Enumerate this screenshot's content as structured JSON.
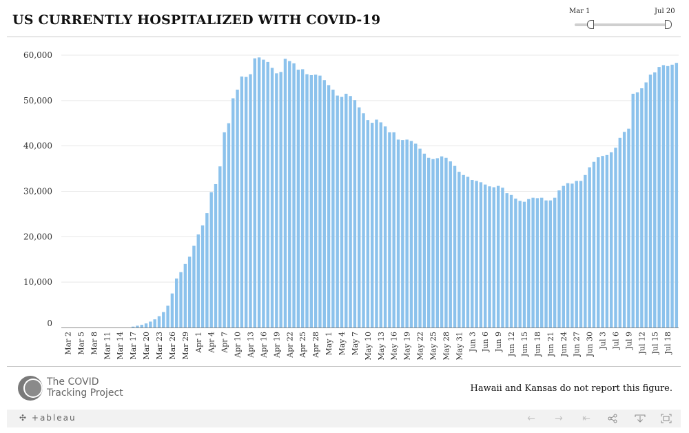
{
  "title": "US CURRENTLY HOSPITALIZED WITH COVID-19",
  "date_slider": {
    "start": "Mar 1",
    "end": "Jul 20"
  },
  "note": "Hawaii and Kansas do not report this figure.",
  "logo": {
    "line1": "The COVID",
    "line2": "Tracking Project"
  },
  "tableau_brand": "+ableau",
  "toolbar": [
    "undo-icon",
    "redo-icon",
    "revert-icon",
    "share-icon",
    "download-icon",
    "fullscreen-icon"
  ],
  "colors": {
    "bar": "#8cc2ec",
    "grid": "#e8e8e8",
    "axis": "#888888"
  },
  "chart_data": {
    "type": "bar",
    "x_ticks": [
      "Mar 2",
      "Mar 5",
      "Mar 8",
      "Mar 11",
      "Mar 14",
      "Mar 17",
      "Mar 20",
      "Mar 23",
      "Mar 26",
      "Mar 29",
      "Apr 1",
      "Apr 4",
      "Apr 7",
      "Apr 10",
      "Apr 13",
      "Apr 16",
      "Apr 19",
      "Apr 22",
      "Apr 25",
      "Apr 28",
      "May 1",
      "May 4",
      "May 7",
      "May 10",
      "May 13",
      "May 16",
      "May 19",
      "May 22",
      "May 25",
      "May 28",
      "May 31",
      "Jun 3",
      "Jun 6",
      "Jun 9",
      "Jun 12",
      "Jun 15",
      "Jun 18",
      "Jun 21",
      "Jun 24",
      "Jun 27",
      "Jun 30",
      "Jul 3",
      "Jul 6",
      "Jul 9",
      "Jul 12",
      "Jul 15",
      "Jul 18"
    ],
    "y_ticks": [
      "60,000",
      "50,000",
      "40,000",
      "30,000",
      "20,000",
      "10,000",
      "0"
    ],
    "ylim": [
      0,
      60000
    ],
    "grid": true,
    "first_date": "Mar 1",
    "last_date": "Jul 20",
    "values": [
      0,
      0,
      0,
      0,
      0,
      0,
      0,
      0,
      0,
      0,
      0,
      0,
      0,
      0,
      0,
      0,
      200,
      400,
      600,
      900,
      1300,
      1800,
      2500,
      3400,
      4800,
      7500,
      10800,
      12200,
      14000,
      15600,
      18000,
      20500,
      22500,
      25200,
      29800,
      31600,
      35500,
      43000,
      45000,
      50500,
      52400,
      55300,
      55200,
      55800,
      59300,
      59500,
      59000,
      58500,
      57200,
      56000,
      56300,
      59200,
      58700,
      58200,
      56800,
      56900,
      55800,
      55600,
      55700,
      55500,
      54500,
      53400,
      52400,
      51100,
      50800,
      51500,
      51000,
      50100,
      48500,
      47200,
      45700,
      45100,
      45800,
      45200,
      44300,
      43000,
      43000,
      41400,
      41300,
      41400,
      41100,
      40500,
      39400,
      38300,
      37400,
      37100,
      37300,
      37700,
      37400,
      36600,
      35600,
      34300,
      33600,
      33200,
      32500,
      32300,
      32000,
      31500,
      31100,
      30900,
      31200,
      30800,
      29600,
      29200,
      28400,
      27900,
      27700,
      28300,
      28600,
      28500,
      28600,
      28000,
      28000,
      28600,
      30200,
      31200,
      31800,
      31700,
      32300,
      32300,
      33600,
      35300,
      36500,
      37500,
      37800,
      38000,
      38600,
      39600,
      41800,
      43100,
      43800,
      51500,
      51800,
      52700,
      54000,
      55700,
      56200,
      57400,
      57800,
      57600,
      57900,
      58300
    ]
  }
}
